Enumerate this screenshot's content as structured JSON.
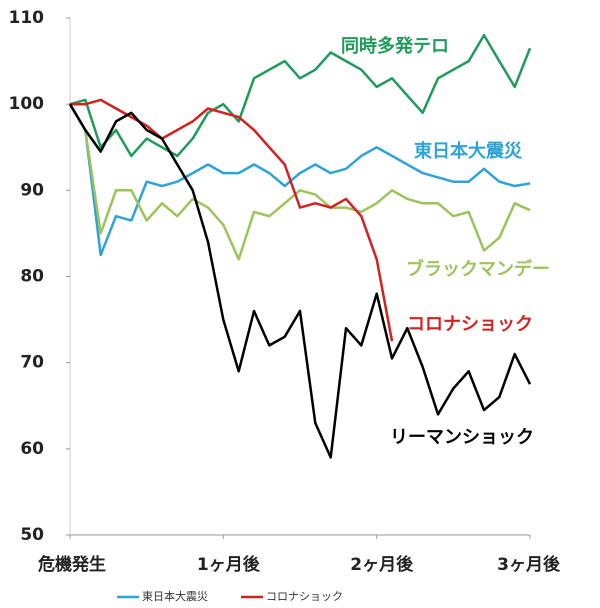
{
  "chart_data": {
    "type": "line",
    "x": [
      0,
      2,
      4,
      6,
      8,
      10,
      12,
      14,
      16,
      18,
      20,
      22,
      24,
      26,
      28,
      30,
      32,
      34,
      36,
      38,
      40,
      42,
      44,
      46,
      48,
      50,
      52,
      54,
      56,
      58,
      60
    ],
    "xlim": [
      0,
      60
    ],
    "xticks": [
      {
        "value": 0,
        "label": "危機発生"
      },
      {
        "value": 20,
        "label": "1ヶ月後"
      },
      {
        "value": 40,
        "label": "2ヶ月後"
      },
      {
        "value": 60,
        "label": "3ヶ月後"
      }
    ],
    "ylim": [
      50,
      110
    ],
    "yticks": [
      50,
      60,
      70,
      80,
      90,
      100,
      110
    ],
    "grid": false,
    "series": [
      {
        "name": "同時多発テロ",
        "color": "#1f9b5a",
        "legend": false,
        "values": [
          100,
          100.5,
          95,
          97,
          94,
          96,
          95,
          94,
          96,
          99,
          100,
          98,
          103,
          104,
          105,
          103,
          104,
          106,
          105,
          104,
          102,
          103,
          101,
          99,
          103,
          104,
          105,
          108,
          105,
          102,
          106.5
        ]
      },
      {
        "name": "東日本大震災",
        "color": "#2ea3d6",
        "legend": true,
        "values": [
          100,
          97,
          82.5,
          87,
          86.5,
          91,
          90.5,
          91,
          92,
          93,
          92,
          92,
          93,
          92,
          90.5,
          92,
          93,
          92,
          92.5,
          94,
          95,
          94,
          93,
          92,
          91.5,
          91,
          91,
          92.5,
          91,
          90.5,
          90.8
        ]
      },
      {
        "name": "ブラックマンデー",
        "color": "#9bc45a",
        "legend": false,
        "values": [
          100,
          97,
          85,
          90,
          90,
          86.5,
          88.5,
          87,
          89,
          88,
          86,
          82,
          87.5,
          87,
          88.5,
          90,
          89.5,
          88,
          88,
          87.5,
          88.5,
          90,
          89,
          88.5,
          88.5,
          87,
          87.5,
          83,
          84.5,
          88.5,
          87.7
        ]
      },
      {
        "name": "コロナショック",
        "color": "#d62020",
        "legend": true,
        "values": [
          100,
          100,
          100.5,
          99.5,
          98.5,
          97.5,
          96,
          97,
          98,
          99.5,
          99,
          98.5,
          97,
          95,
          93,
          88,
          88.5,
          88,
          89,
          87,
          82,
          72.5,
          null,
          null,
          null,
          null,
          null,
          null,
          null,
          null,
          null
        ]
      },
      {
        "name": "リーマンショック",
        "color": "#000000",
        "legend": false,
        "values": [
          100,
          97,
          94.5,
          98,
          99,
          97,
          96,
          93,
          90,
          84,
          75,
          69,
          76,
          72,
          73,
          76,
          63,
          59,
          74,
          72,
          78,
          70.5,
          74,
          69.5,
          64,
          67,
          69,
          64.5,
          66,
          71,
          67.5
        ]
      }
    ]
  }
}
